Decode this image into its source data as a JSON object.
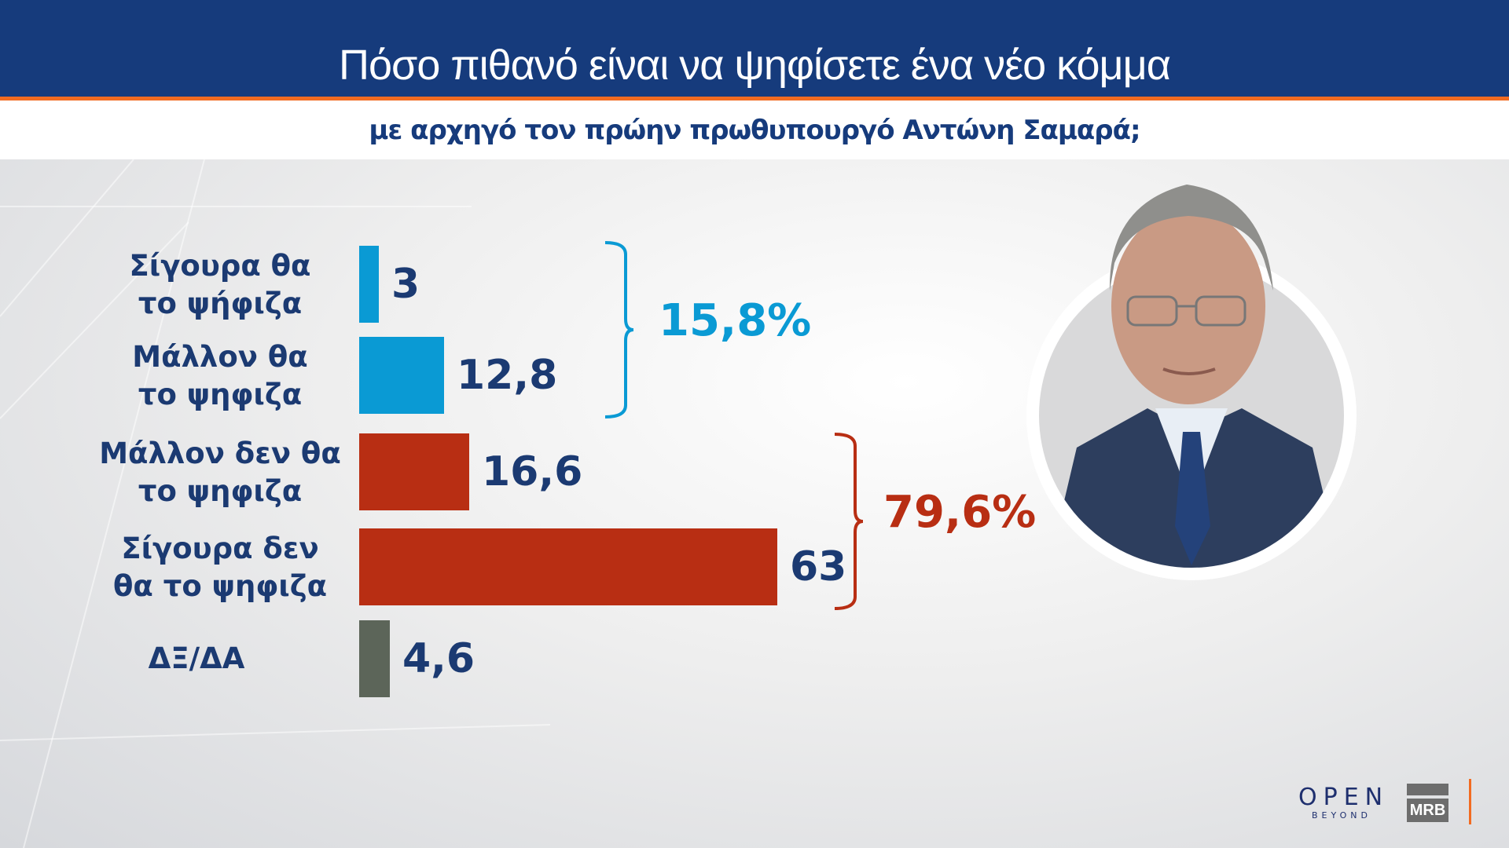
{
  "header": {
    "title": "Πόσο πιθανό είναι να ψηφίσετε ένα νέο κόμμα",
    "subtitle": "με αρχηγό τον πρώην πρωθυπουργό Αντώνη Σαμαρά;"
  },
  "chart_data": {
    "type": "bar",
    "orientation": "horizontal",
    "title": "Πόσο πιθανό είναι να ψηφίσετε ένα νέο κόμμα με αρχηγό τον πρώην πρωθυπουργό Αντώνη Σαμαρά;",
    "categories": [
      {
        "line1": "Σίγουρα θα",
        "line2": "το ψήφιζα"
      },
      {
        "line1": "Μάλλον θα",
        "line2": "το ψηφιζα"
      },
      {
        "line1": "Μάλλον δεν θα",
        "line2": "το ψηφιζα"
      },
      {
        "line1": "Σίγουρα δεν",
        "line2": "θα το ψηφιζα"
      },
      {
        "line1": "ΔΞ/ΔΑ",
        "line2": ""
      }
    ],
    "values": [
      3,
      12.8,
      16.6,
      63,
      4.6
    ],
    "value_labels": [
      "3",
      "12,8",
      "16,6",
      "63",
      "4,6"
    ],
    "colors": [
      "#0a9ad4",
      "#0a9ad4",
      "#b82e13",
      "#b82e13",
      "#5c6559"
    ],
    "groups": [
      {
        "label": "15,8%",
        "members": [
          0,
          1
        ],
        "color": "#0a9ad4"
      },
      {
        "label": "79,6%",
        "members": [
          2,
          3
        ],
        "color": "#b82e13"
      }
    ],
    "xlim": [
      0,
      63
    ]
  },
  "logos": {
    "open": "OPEN",
    "open_sub": "BEYOND",
    "mrb": "MRB"
  }
}
